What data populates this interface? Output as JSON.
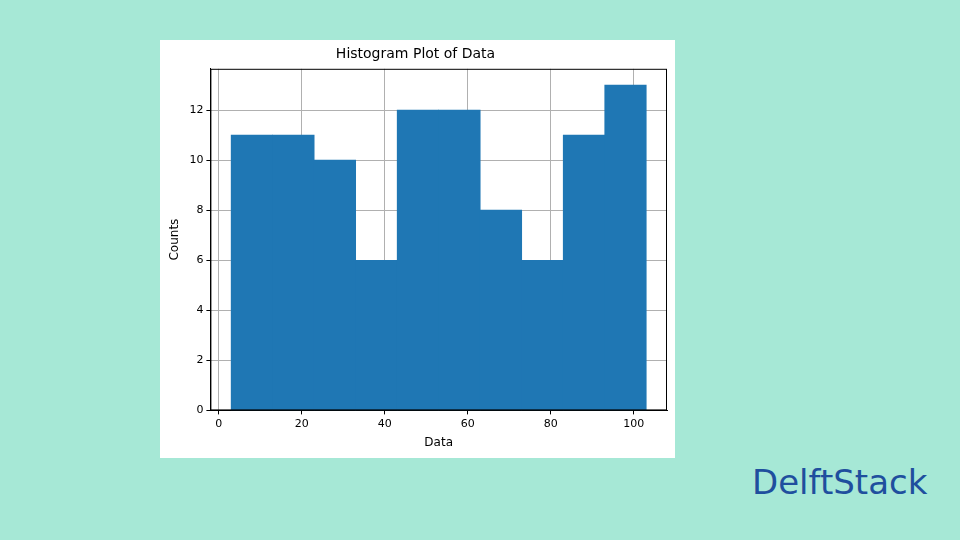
{
  "chart_data": {
    "type": "histogram",
    "title": "Histogram Plot of Data",
    "xlabel": "Data",
    "ylabel": "Counts",
    "bins": [
      3,
      13,
      23,
      33,
      43,
      53,
      63,
      73,
      83,
      93,
      103
    ],
    "values": [
      11,
      11,
      10,
      6,
      12,
      12,
      8,
      6,
      11,
      13
    ],
    "color": "#1f77b4",
    "xlim": [
      -2,
      108
    ],
    "xticks": [
      0,
      20,
      40,
      60,
      80,
      100
    ],
    "ylim": [
      0,
      13.65
    ],
    "yticks": [
      0,
      2,
      4,
      6,
      8,
      10,
      12
    ],
    "grid": true,
    "annotations": [
      "DelftStack"
    ]
  }
}
